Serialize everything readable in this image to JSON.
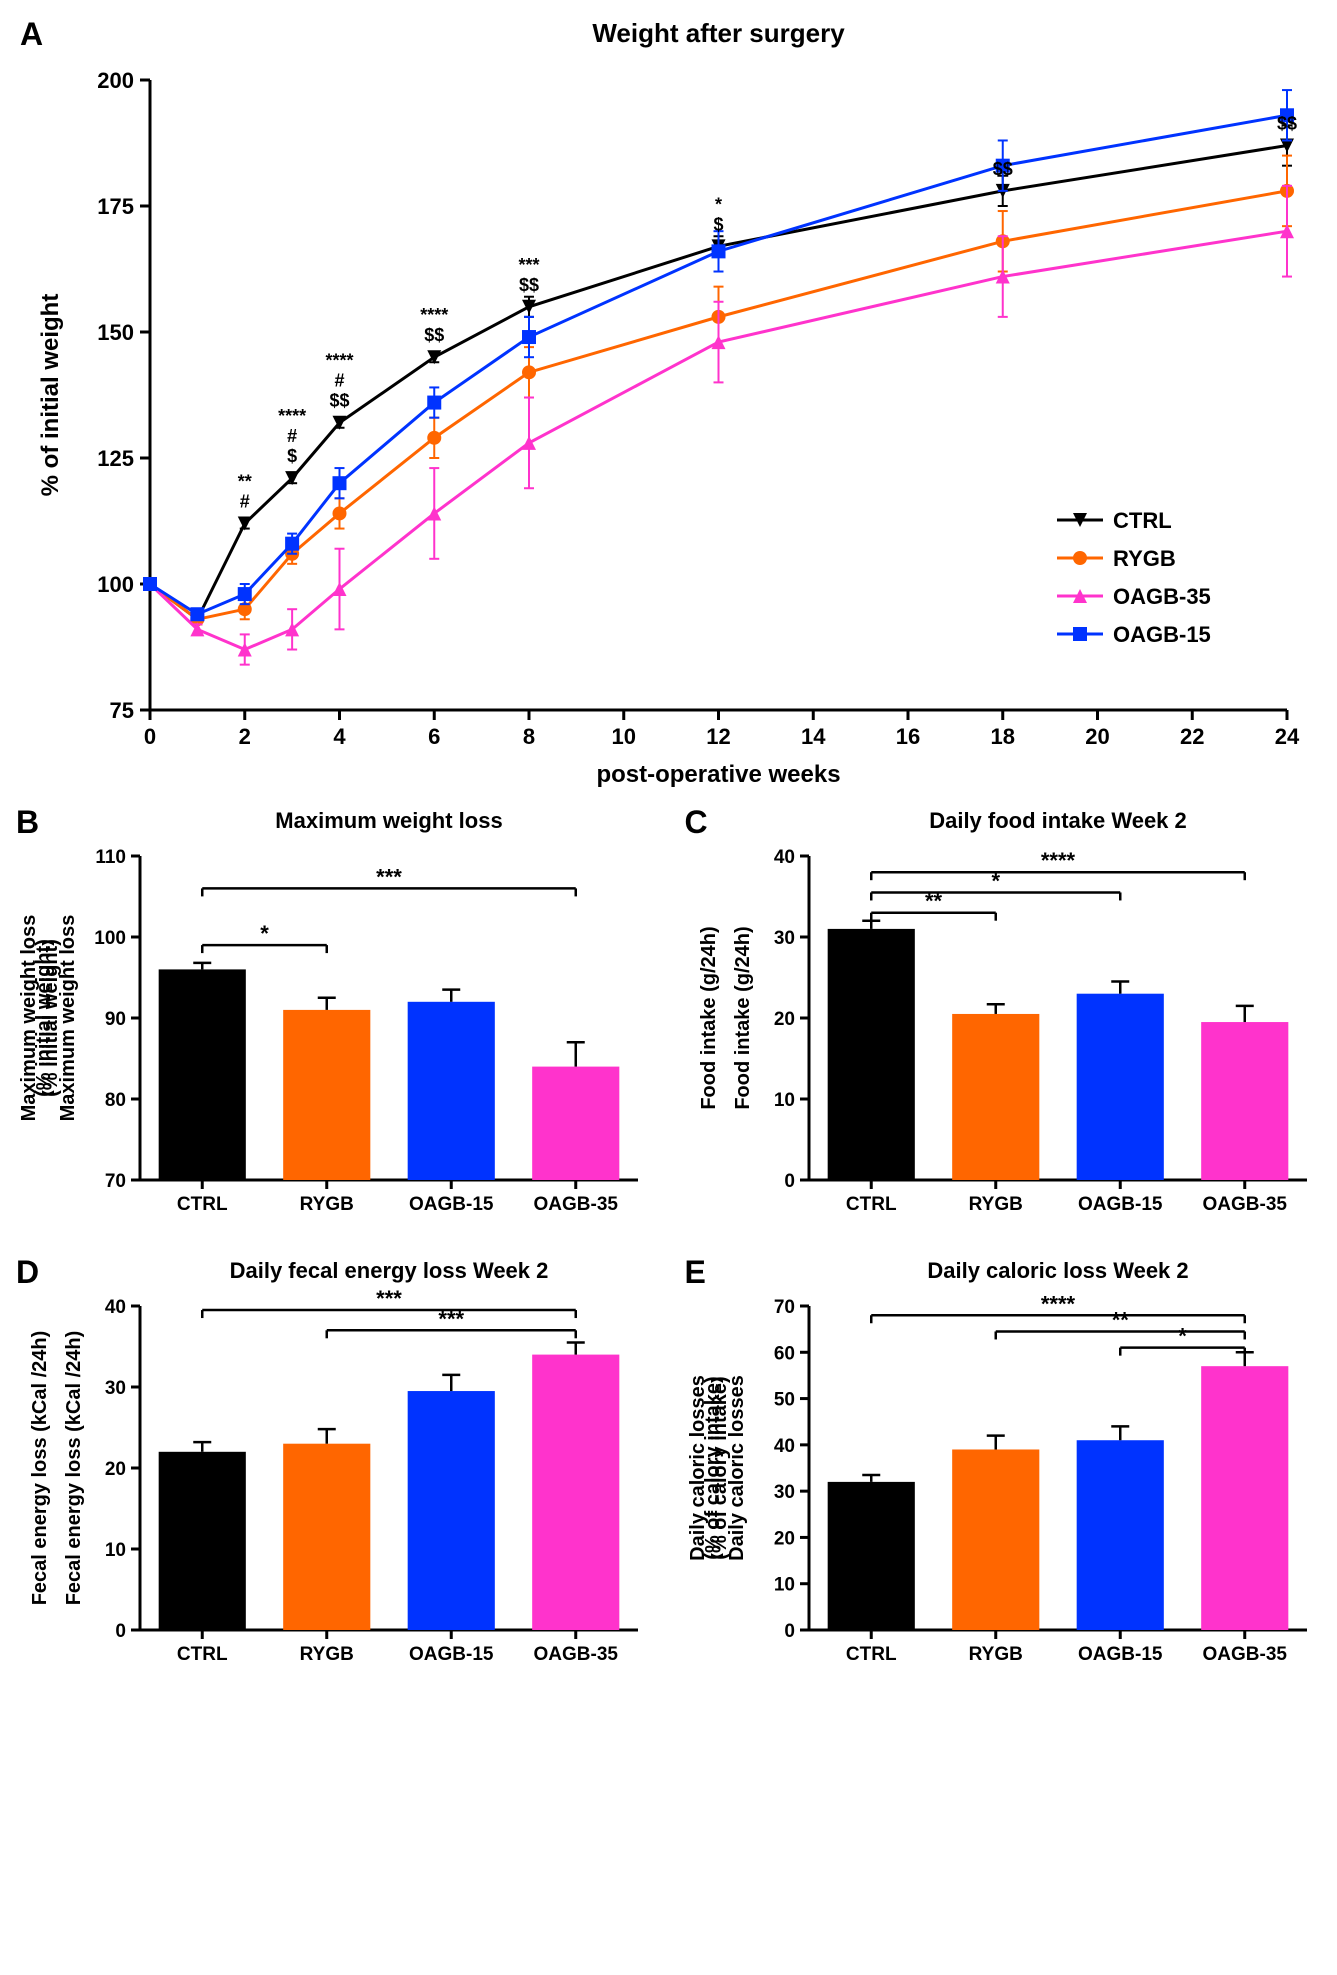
{
  "panelA": {
    "label": "A",
    "title": "Weight after surgery",
    "title_fontsize": 26,
    "xlabel": "post-operative weeks",
    "ylabel": "% of initial weight",
    "label_fontsize": 24,
    "tick_fontsize": 22,
    "xlim": [
      0,
      24
    ],
    "ylim": [
      75,
      200
    ],
    "xticks": [
      0,
      2,
      4,
      6,
      8,
      10,
      12,
      14,
      16,
      18,
      20,
      22,
      24
    ],
    "yticks": [
      75,
      100,
      125,
      150,
      175,
      200
    ],
    "background_color": "#ffffff",
    "axis_color": "#000000",
    "tick_length": 8,
    "line_width": 3,
    "marker_size": 7,
    "series": [
      {
        "name": "CTRL",
        "color": "#000000",
        "marker": "triangle-down",
        "x": [
          0,
          1,
          2,
          3,
          4,
          6,
          8,
          12,
          18,
          24
        ],
        "y": [
          100,
          93,
          112,
          121,
          132,
          145,
          155,
          167,
          178,
          187
        ],
        "err": [
          0,
          1,
          1,
          1,
          1,
          1,
          2,
          2,
          3,
          4
        ]
      },
      {
        "name": "RYGB",
        "color": "#ff6600",
        "marker": "circle",
        "x": [
          0,
          1,
          2,
          3,
          4,
          6,
          8,
          12,
          18,
          24
        ],
        "y": [
          100,
          93,
          95,
          106,
          114,
          129,
          142,
          153,
          168,
          178
        ],
        "err": [
          0,
          1,
          2,
          2,
          3,
          4,
          5,
          6,
          6,
          7
        ]
      },
      {
        "name": "OAGB-35",
        "color": "#ff33cc",
        "marker": "triangle-up",
        "x": [
          0,
          1,
          2,
          3,
          4,
          6,
          8,
          12,
          18,
          24
        ],
        "y": [
          100,
          91,
          87,
          91,
          99,
          114,
          128,
          148,
          161,
          170
        ],
        "err": [
          0,
          1,
          3,
          4,
          8,
          9,
          9,
          8,
          8,
          9
        ]
      },
      {
        "name": "OAGB-15",
        "color": "#0033ff",
        "marker": "square",
        "x": [
          0,
          1,
          2,
          3,
          4,
          6,
          8,
          12,
          18,
          24
        ],
        "y": [
          100,
          94,
          98,
          108,
          120,
          136,
          149,
          166,
          183,
          193
        ],
        "err": [
          0,
          1,
          2,
          2,
          3,
          3,
          4,
          4,
          5,
          5
        ]
      }
    ],
    "annotations": [
      {
        "x": 2,
        "lines": [
          "**",
          "#"
        ]
      },
      {
        "x": 3,
        "lines": [
          "****",
          "#",
          "$"
        ]
      },
      {
        "x": 4,
        "lines": [
          "****",
          "#",
          "$$"
        ]
      },
      {
        "x": 6,
        "lines": [
          "****",
          "$$"
        ]
      },
      {
        "x": 8,
        "lines": [
          "***",
          "$$"
        ]
      },
      {
        "x": 12,
        "lines": [
          "*",
          "$"
        ]
      },
      {
        "x": 18,
        "lines": [
          "$$"
        ]
      },
      {
        "x": 24,
        "lines": [
          "$$"
        ]
      }
    ],
    "annotation_fontsize": 18,
    "legend": {
      "position": "right",
      "fontsize": 22,
      "items": [
        "CTRL",
        "RYGB",
        "OAGB-35",
        "OAGB-15"
      ]
    }
  },
  "panelB": {
    "label": "B",
    "title": "Maximum weight loss",
    "title_fontsize": 22,
    "xlabel": "",
    "ylabel": "Maximum weight loss\n(% initial weight)",
    "label_fontsize": 20,
    "tick_fontsize": 19,
    "ylim": [
      70,
      110
    ],
    "yticks": [
      70,
      80,
      90,
      100,
      110
    ],
    "categories": [
      "CTRL",
      "RYGB",
      "OAGB-15",
      "OAGB-35"
    ],
    "values": [
      96,
      91,
      92,
      84
    ],
    "errors": [
      0.8,
      1.5,
      1.5,
      3
    ],
    "bar_colors": [
      "#000000",
      "#ff6600",
      "#0033ff",
      "#ff33cc"
    ],
    "bar_width": 0.7,
    "sig_bars": [
      {
        "from": 0,
        "to": 1,
        "label": "*",
        "y": 99
      },
      {
        "from": 0,
        "to": 3,
        "label": "***",
        "y": 106
      }
    ],
    "sig_fontsize": 22
  },
  "panelC": {
    "label": "C",
    "title": "Daily food intake Week 2",
    "title_fontsize": 22,
    "ylabel": "Food intake (g/24h)",
    "label_fontsize": 20,
    "tick_fontsize": 19,
    "ylim": [
      0,
      40
    ],
    "yticks": [
      0,
      10,
      20,
      30,
      40
    ],
    "categories": [
      "CTRL",
      "RYGB",
      "OAGB-15",
      "OAGB-35"
    ],
    "values": [
      31,
      20.5,
      23,
      19.5
    ],
    "errors": [
      1,
      1.2,
      1.5,
      2
    ],
    "bar_colors": [
      "#000000",
      "#ff6600",
      "#0033ff",
      "#ff33cc"
    ],
    "bar_width": 0.7,
    "sig_bars": [
      {
        "from": 0,
        "to": 1,
        "label": "**",
        "y": 33
      },
      {
        "from": 0,
        "to": 2,
        "label": "*",
        "y": 35.5
      },
      {
        "from": 0,
        "to": 3,
        "label": "****",
        "y": 38
      }
    ],
    "sig_fontsize": 22
  },
  "panelD": {
    "label": "D",
    "title": "Daily fecal energy loss Week 2",
    "title_fontsize": 22,
    "ylabel": "Fecal energy loss (kCal /24h)",
    "label_fontsize": 20,
    "tick_fontsize": 19,
    "ylim": [
      0,
      40
    ],
    "yticks": [
      0,
      10,
      20,
      30,
      40
    ],
    "categories": [
      "CTRL",
      "RYGB",
      "OAGB-15",
      "OAGB-35"
    ],
    "values": [
      22,
      23,
      29.5,
      34
    ],
    "errors": [
      1.2,
      1.8,
      2,
      1.5
    ],
    "bar_colors": [
      "#000000",
      "#ff6600",
      "#0033ff",
      "#ff33cc"
    ],
    "bar_width": 0.7,
    "sig_bars": [
      {
        "from": 1,
        "to": 3,
        "label": "***",
        "y": 37
      },
      {
        "from": 0,
        "to": 3,
        "label": "***",
        "y": 39.5
      }
    ],
    "sig_fontsize": 22
  },
  "panelE": {
    "label": "E",
    "title": "Daily caloric loss Week 2",
    "title_fontsize": 22,
    "ylabel": "Daily caloric losses\n(% of calory intake)",
    "label_fontsize": 20,
    "tick_fontsize": 19,
    "ylim": [
      0,
      70
    ],
    "yticks": [
      0,
      10,
      20,
      30,
      40,
      50,
      60,
      70
    ],
    "categories": [
      "CTRL",
      "RYGB",
      "OAGB-15",
      "OAGB-35"
    ],
    "values": [
      32,
      39,
      41,
      57
    ],
    "errors": [
      1.5,
      3,
      3,
      3
    ],
    "bar_colors": [
      "#000000",
      "#ff6600",
      "#0033ff",
      "#ff33cc"
    ],
    "bar_width": 0.7,
    "sig_bars": [
      {
        "from": 2,
        "to": 3,
        "label": "*",
        "y": 61
      },
      {
        "from": 1,
        "to": 3,
        "label": "**",
        "y": 64.5
      },
      {
        "from": 0,
        "to": 3,
        "label": "****",
        "y": 68
      }
    ],
    "sig_fontsize": 22
  },
  "layout": {
    "panelA_height": 790,
    "small_panel_height": 440,
    "panel_label_fontsize": 32
  }
}
